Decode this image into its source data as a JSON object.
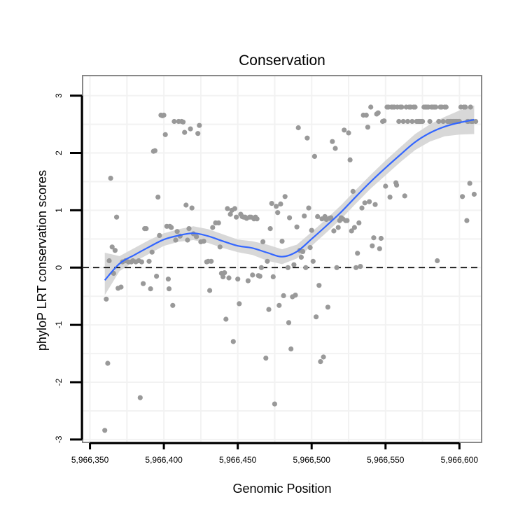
{
  "chart_data": {
    "type": "scatter",
    "title": "Conservation",
    "xlabel": "Genomic Position",
    "ylabel": "phyloP LRT conservation scores",
    "xlim": [
      5966345,
      5966615
    ],
    "ylim": [
      -3.05,
      3.35
    ],
    "xticks": [
      5966350,
      5966400,
      5966450,
      5966500,
      5966550,
      5966600
    ],
    "xtick_labels": [
      "5,966,350",
      "5,966,400",
      "5,966,450",
      "5,966,500",
      "5,966,550",
      "5,966,600"
    ],
    "yticks": [
      -3,
      -2,
      -1,
      0,
      1,
      2,
      3
    ],
    "ytick_labels": [
      "-3",
      "-2",
      "-1",
      "0",
      "1",
      "2",
      "3"
    ],
    "grid": true,
    "reference_line": {
      "y": 0,
      "style": "dashed"
    },
    "colors": {
      "points": "#999999",
      "smooth_line": "#3366FF",
      "confidence_band": "#D4D4D4",
      "frame": "#888888",
      "grid": "#F2F2F2"
    },
    "points": [
      [
        5966360,
        -2.84
      ],
      [
        5966361,
        -0.55
      ],
      [
        5966362,
        -1.67
      ],
      [
        5966363,
        0.12
      ],
      [
        5966364,
        1.56
      ],
      [
        5966365,
        0.36
      ],
      [
        5966366,
        -0.1
      ],
      [
        5966367,
        0.3
      ],
      [
        5966368,
        0.88
      ],
      [
        5966369,
        -0.36
      ],
      [
        5966371,
        -0.34
      ],
      [
        5966372,
        0.1
      ],
      [
        5966374,
        0.12
      ],
      [
        5966376,
        0.1
      ],
      [
        5966378,
        0.1
      ],
      [
        5966379,
        0.12
      ],
      [
        5966381,
        0.1
      ],
      [
        5966383,
        0.12
      ],
      [
        5966384,
        -2.27
      ],
      [
        5966385,
        0.1
      ],
      [
        5966386,
        -0.28
      ],
      [
        5966387,
        0.68
      ],
      [
        5966388,
        0.68
      ],
      [
        5966390,
        0.11
      ],
      [
        5966391,
        -0.37
      ],
      [
        5966392,
        0.27
      ],
      [
        5966393,
        2.03
      ],
      [
        5966394,
        2.04
      ],
      [
        5966395,
        -0.15
      ],
      [
        5966396,
        1.23
      ],
      [
        5966397,
        0.56
      ],
      [
        5966398,
        2.66
      ],
      [
        5966399,
        2.65
      ],
      [
        5966400,
        2.66
      ],
      [
        5966401,
        2.32
      ],
      [
        5966402,
        0.72
      ],
      [
        5966403,
        -0.2
      ],
      [
        5966403.5,
        -0.37
      ],
      [
        5966404,
        0.72
      ],
      [
        5966405,
        0.7
      ],
      [
        5966406,
        -0.66
      ],
      [
        5966407,
        2.55
      ],
      [
        5966408,
        0.48
      ],
      [
        5966409,
        0.63
      ],
      [
        5966410,
        2.55
      ],
      [
        5966411,
        0.55
      ],
      [
        5966412,
        2.55
      ],
      [
        5966413,
        2.54
      ],
      [
        5966414,
        2.36
      ],
      [
        5966415,
        1.09
      ],
      [
        5966416,
        0.48
      ],
      [
        5966417,
        0.68
      ],
      [
        5966418,
        2.42
      ],
      [
        5966419,
        1.04
      ],
      [
        5966420,
        0.59
      ],
      [
        5966422,
        0.54
      ],
      [
        5966423,
        2.34
      ],
      [
        5966424,
        2.48
      ],
      [
        5966425,
        0.45
      ],
      [
        5966427,
        0.46
      ],
      [
        5966429,
        0.1
      ],
      [
        5966430,
        0.11
      ],
      [
        5966431,
        -0.4
      ],
      [
        5966432,
        0.11
      ],
      [
        5966433,
        0.7
      ],
      [
        5966435,
        0.78
      ],
      [
        5966437,
        0.78
      ],
      [
        5966438,
        0.36
      ],
      [
        5966439,
        -0.1
      ],
      [
        5966440,
        -0.16
      ],
      [
        5966441,
        -0.09
      ],
      [
        5966442,
        -0.9
      ],
      [
        5966443,
        1.03
      ],
      [
        5966444,
        -0.18
      ],
      [
        5966445,
        0.93
      ],
      [
        5966446,
        1.0
      ],
      [
        5966447,
        -1.29
      ],
      [
        5966448,
        1.03
      ],
      [
        5966449,
        0.88
      ],
      [
        5966450,
        -0.2
      ],
      [
        5966451,
        -0.63
      ],
      [
        5966452,
        0.93
      ],
      [
        5966453,
        0.89
      ],
      [
        5966454,
        0.88
      ],
      [
        5966455,
        0.88
      ],
      [
        5966456,
        0.86
      ],
      [
        5966457,
        -0.23
      ],
      [
        5966458,
        0.88
      ],
      [
        5966459,
        0.88
      ],
      [
        5966460,
        -0.13
      ],
      [
        5966461,
        0.85
      ],
      [
        5966462,
        0.88
      ],
      [
        5966463,
        0.85
      ],
      [
        5966464,
        -0.14
      ],
      [
        5966465,
        -0.15
      ],
      [
        5966466,
        0.0
      ],
      [
        5966467,
        0.45
      ],
      [
        5966469,
        -1.58
      ],
      [
        5966470,
        0.11
      ],
      [
        5966471,
        -0.73
      ],
      [
        5966472,
        0.68
      ],
      [
        5966473,
        1.12
      ],
      [
        5966474,
        -0.16
      ],
      [
        5966475,
        -2.38
      ],
      [
        5966476,
        1.07
      ],
      [
        5966477,
        0.96
      ],
      [
        5966478,
        -0.66
      ],
      [
        5966479,
        1.11
      ],
      [
        5966480,
        0.46
      ],
      [
        5966481,
        -0.49
      ],
      [
        5966482,
        1.24
      ],
      [
        5966484,
        0.0
      ],
      [
        5966484.5,
        -0.96
      ],
      [
        5966485,
        0.87
      ],
      [
        5966486,
        -1.42
      ],
      [
        5966487,
        -0.51
      ],
      [
        5966488,
        0.05
      ],
      [
        5966489,
        -0.48
      ],
      [
        5966490,
        0.71
      ],
      [
        5966491,
        2.44
      ],
      [
        5966492,
        0.3
      ],
      [
        5966493,
        0.18
      ],
      [
        5966494,
        0.28
      ],
      [
        5966495,
        0.9
      ],
      [
        5966496,
        0.0
      ],
      [
        5966497,
        2.26
      ],
      [
        5966498,
        1.04
      ],
      [
        5966499,
        0.35
      ],
      [
        5966500,
        0.65
      ],
      [
        5966501,
        0.11
      ],
      [
        5966502,
        1.94
      ],
      [
        5966503,
        -0.86
      ],
      [
        5966504,
        0.89
      ],
      [
        5966505,
        -0.31
      ],
      [
        5966506,
        -1.64
      ],
      [
        5966507,
        0.85
      ],
      [
        5966508,
        -1.56
      ],
      [
        5966509,
        0.89
      ],
      [
        5966510,
        0.84
      ],
      [
        5966511,
        -0.69
      ],
      [
        5966512,
        0.86
      ],
      [
        5966513,
        0.87
      ],
      [
        5966514,
        2.2
      ],
      [
        5966515,
        0.64
      ],
      [
        5966516,
        2.08
      ],
      [
        5966517,
        0.0
      ],
      [
        5966518,
        0.7
      ],
      [
        5966519,
        0.82
      ],
      [
        5966520,
        0.87
      ],
      [
        5966521,
        0.85
      ],
      [
        5966522,
        2.4
      ],
      [
        5966523,
        0.82
      ],
      [
        5966524,
        0.82
      ],
      [
        5966525,
        2.35
      ],
      [
        5966526,
        1.88
      ],
      [
        5966527,
        0.64
      ],
      [
        5966528,
        1.33
      ],
      [
        5966529,
        0.7
      ],
      [
        5966530,
        0.0
      ],
      [
        5966531,
        0.25
      ],
      [
        5966532,
        0.78
      ],
      [
        5966533,
        0.02
      ],
      [
        5966534,
        1.04
      ],
      [
        5966535,
        2.66
      ],
      [
        5966536,
        1.13
      ],
      [
        5966537,
        2.66
      ],
      [
        5966538,
        2.45
      ],
      [
        5966539,
        1.15
      ],
      [
        5966540,
        2.8
      ],
      [
        5966541,
        0.38
      ],
      [
        5966542,
        0.52
      ],
      [
        5966543,
        1.1
      ],
      [
        5966544,
        2.68
      ],
      [
        5966545,
        2.7
      ],
      [
        5966546,
        0.33
      ],
      [
        5966547,
        0.51
      ],
      [
        5966548,
        2.55
      ],
      [
        5966549,
        2.56
      ],
      [
        5966550,
        1.42
      ],
      [
        5966551,
        2.8
      ],
      [
        5966552,
        2.8
      ],
      [
        5966553,
        1.23
      ],
      [
        5966554,
        2.8
      ],
      [
        5966555,
        2.8
      ],
      [
        5966556,
        2.8
      ],
      [
        5966557,
        1.48
      ],
      [
        5966557.5,
        1.44
      ],
      [
        5966558,
        2.8
      ],
      [
        5966559,
        2.55
      ],
      [
        5966560,
        2.8
      ],
      [
        5966561,
        2.8
      ],
      [
        5966562,
        2.55
      ],
      [
        5966563,
        1.25
      ],
      [
        5966564,
        2.8
      ],
      [
        5966565,
        2.55
      ],
      [
        5966566,
        2.8
      ],
      [
        5966567,
        2.8
      ],
      [
        5966568,
        2.55
      ],
      [
        5966569,
        2.8
      ],
      [
        5966570,
        2.8
      ],
      [
        5966571,
        2.55
      ],
      [
        5966572,
        2.55
      ],
      [
        5966573,
        2.55
      ],
      [
        5966574,
        2.55
      ],
      [
        5966575,
        2.55
      ],
      [
        5966576,
        2.8
      ],
      [
        5966577,
        2.8
      ],
      [
        5966578,
        2.8
      ],
      [
        5966579,
        2.8
      ],
      [
        5966580,
        2.55
      ],
      [
        5966581,
        2.8
      ],
      [
        5966582,
        2.8
      ],
      [
        5966583,
        2.8
      ],
      [
        5966584,
        2.8
      ],
      [
        5966585,
        0.12
      ],
      [
        5966586,
        2.55
      ],
      [
        5966587,
        2.8
      ],
      [
        5966588,
        2.8
      ],
      [
        5966589,
        2.55
      ],
      [
        5966590,
        2.8
      ],
      [
        5966591,
        2.8
      ],
      [
        5966592,
        2.55
      ],
      [
        5966593,
        2.55
      ],
      [
        5966594,
        2.55
      ],
      [
        5966595,
        2.55
      ],
      [
        5966596,
        2.55
      ],
      [
        5966597,
        2.55
      ],
      [
        5966598,
        2.55
      ],
      [
        5966599,
        2.55
      ],
      [
        5966600,
        2.55
      ],
      [
        5966601,
        2.8
      ],
      [
        5966602,
        1.24
      ],
      [
        5966603,
        2.8
      ],
      [
        5966604,
        2.8
      ],
      [
        5966605,
        0.82
      ],
      [
        5966605.5,
        2.55
      ],
      [
        5966606,
        2.55
      ],
      [
        5966607,
        1.47
      ],
      [
        5966607.5,
        2.8
      ],
      [
        5966608,
        2.55
      ],
      [
        5966609,
        2.55
      ],
      [
        5966610,
        1.28
      ],
      [
        5966611,
        2.55
      ]
    ],
    "smooth": {
      "x": [
        5966360,
        5966370,
        5966380,
        5966390,
        5966400,
        5966410,
        5966420,
        5966430,
        5966440,
        5966450,
        5966460,
        5966470,
        5966480,
        5966490,
        5966500,
        5966510,
        5966520,
        5966530,
        5966540,
        5966550,
        5966560,
        5966570,
        5966580,
        5966590,
        5966600,
        5966610
      ],
      "y": [
        -0.22,
        0.07,
        0.22,
        0.36,
        0.49,
        0.56,
        0.6,
        0.55,
        0.46,
        0.38,
        0.34,
        0.26,
        0.19,
        0.28,
        0.5,
        0.73,
        0.97,
        1.24,
        1.5,
        1.74,
        1.97,
        2.19,
        2.35,
        2.46,
        2.53,
        2.58
      ],
      "lower": [
        -0.48,
        -0.06,
        0.1,
        0.24,
        0.38,
        0.45,
        0.48,
        0.43,
        0.34,
        0.27,
        0.22,
        0.12,
        0.06,
        0.16,
        0.38,
        0.61,
        0.85,
        1.12,
        1.38,
        1.61,
        1.84,
        2.05,
        2.2,
        2.29,
        2.32,
        2.33
      ],
      "upper": [
        0.26,
        0.2,
        0.34,
        0.48,
        0.6,
        0.67,
        0.72,
        0.67,
        0.58,
        0.49,
        0.46,
        0.4,
        0.32,
        0.4,
        0.62,
        0.85,
        1.09,
        1.36,
        1.62,
        1.87,
        2.1,
        2.33,
        2.5,
        2.63,
        2.74,
        2.83
      ]
    }
  }
}
